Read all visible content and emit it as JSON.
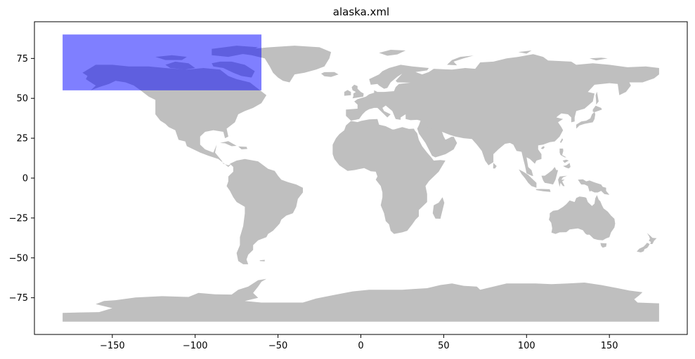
{
  "chart_data": {
    "type": "map",
    "title": "alaska.xml",
    "xlim": [
      -197,
      197
    ],
    "ylim": [
      -98,
      98
    ],
    "x_ticks": [
      -150,
      -100,
      -50,
      0,
      50,
      100,
      150
    ],
    "x_tick_labels": [
      "−150",
      "−100",
      "−50",
      "0",
      "50",
      "100",
      "150"
    ],
    "y_ticks": [
      75,
      50,
      25,
      0,
      -25,
      -50,
      -75
    ],
    "y_tick_labels": [
      "75",
      "50",
      "25",
      "0",
      "−25",
      "−50",
      "−75"
    ],
    "basemap": {
      "name": "world-land",
      "color": "#bfbfbf"
    },
    "bbox_region": {
      "lon_min": -180,
      "lon_max": -60,
      "lat_min": 55,
      "lat_max": 90,
      "color": "#0000ff",
      "alpha": 0.5
    },
    "grid": false
  }
}
